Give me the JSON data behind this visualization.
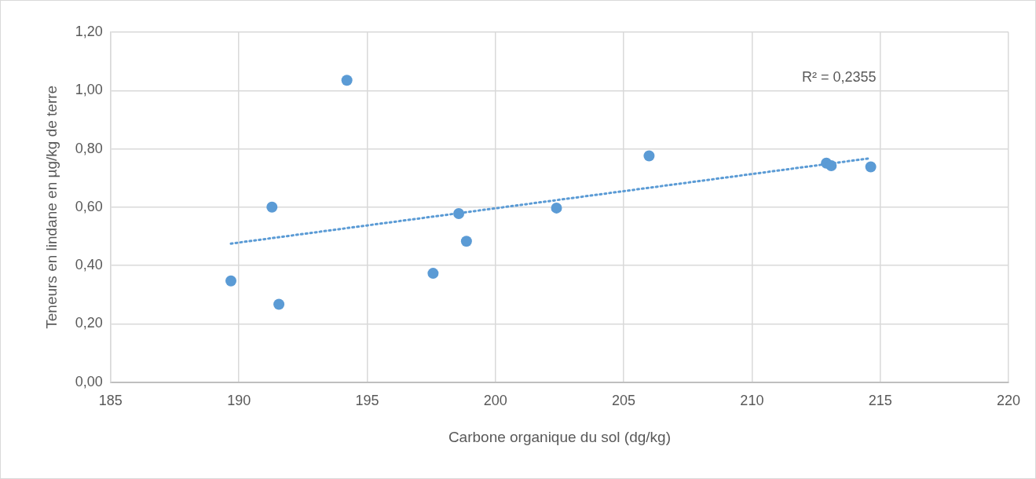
{
  "chart_data": {
    "type": "scatter",
    "xlabel": "Carbone organique du sol (dg/kg)",
    "ylabel": "Teneurs en lindane en µg/kg de terre",
    "series": [
      {
        "type": "scatter",
        "color": "#5b9bd5",
        "marker": "circle",
        "x": [
          189.69,
          191.29,
          191.56,
          194.21,
          197.57,
          198.57,
          198.87,
          202.38,
          205.99,
          212.9,
          213.09,
          214.63
        ],
        "values": [
          0.347,
          0.6,
          0.267,
          1.035,
          0.373,
          0.578,
          0.483,
          0.597,
          0.776,
          0.751,
          0.742,
          0.738
        ]
      },
      {
        "type": "line",
        "color": "#5b9bd5",
        "marker": "none",
        "line_style": "dotted",
        "x": [
          189.69,
          214.63
        ],
        "values": [
          0.475,
          0.768
        ]
      }
    ],
    "xlim": [
      185,
      220
    ],
    "xticks": [
      185,
      190,
      195,
      200,
      205,
      210,
      215,
      220
    ],
    "ylim": [
      0,
      1.2
    ],
    "yticks": [
      {
        "value": 0,
        "label": "0,00"
      },
      {
        "value": 0.2,
        "label": "0,20"
      },
      {
        "value": 0.4,
        "label": "0,40"
      },
      {
        "value": 0.6,
        "label": "0,60"
      },
      {
        "value": 0.8,
        "label": "0,80"
      },
      {
        "value": 1,
        "label": "1,00"
      },
      {
        "value": 1.2,
        "label": "1,20"
      }
    ],
    "annotations": [
      "R² = 0,2355"
    ],
    "grid": true,
    "legend": false
  }
}
